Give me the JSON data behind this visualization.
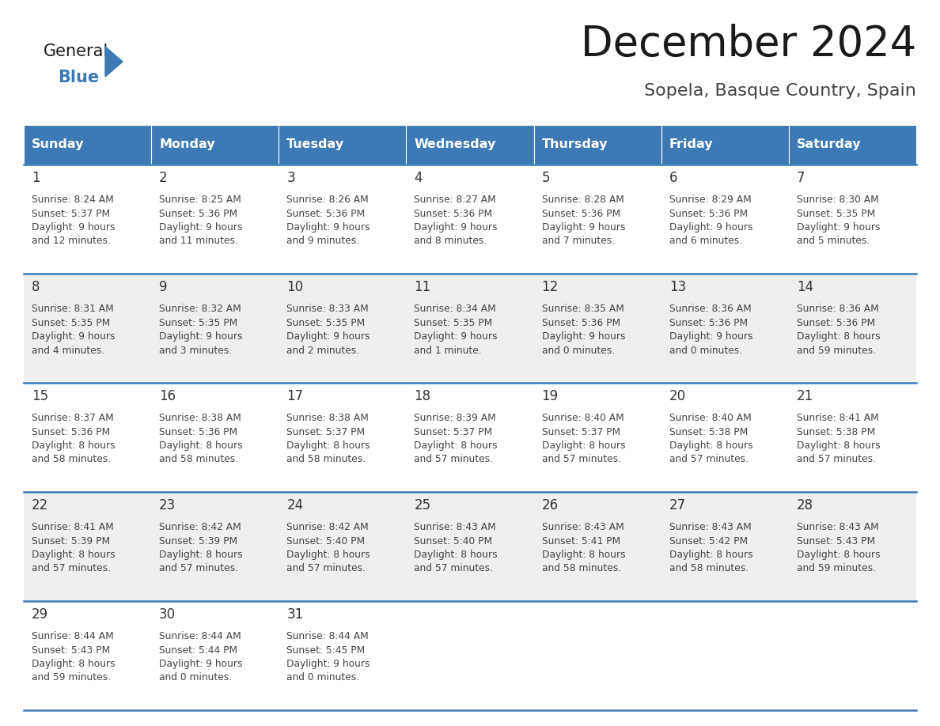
{
  "title": "December 2024",
  "subtitle": "Sopela, Basque Country, Spain",
  "header_color": "#3D7AB5",
  "header_text_color": "#FFFFFF",
  "cell_bg_white": "#FFFFFF",
  "cell_bg_gray": "#EFEFEF",
  "day_names": [
    "Sunday",
    "Monday",
    "Tuesday",
    "Wednesday",
    "Thursday",
    "Friday",
    "Saturday"
  ],
  "title_color": "#1a1a1a",
  "subtitle_color": "#444444",
  "date_color": "#333333",
  "info_color": "#444444",
  "divider_color": "#3D7AB5",
  "calendar_data": [
    {
      "day": 1,
      "col": 0,
      "row": 0,
      "sunrise": "8:24 AM",
      "sunset": "5:37 PM",
      "daylight_hours": 9,
      "daylight_minutes": 12
    },
    {
      "day": 2,
      "col": 1,
      "row": 0,
      "sunrise": "8:25 AM",
      "sunset": "5:36 PM",
      "daylight_hours": 9,
      "daylight_minutes": 11
    },
    {
      "day": 3,
      "col": 2,
      "row": 0,
      "sunrise": "8:26 AM",
      "sunset": "5:36 PM",
      "daylight_hours": 9,
      "daylight_minutes": 9
    },
    {
      "day": 4,
      "col": 3,
      "row": 0,
      "sunrise": "8:27 AM",
      "sunset": "5:36 PM",
      "daylight_hours": 9,
      "daylight_minutes": 8
    },
    {
      "day": 5,
      "col": 4,
      "row": 0,
      "sunrise": "8:28 AM",
      "sunset": "5:36 PM",
      "daylight_hours": 9,
      "daylight_minutes": 7
    },
    {
      "day": 6,
      "col": 5,
      "row": 0,
      "sunrise": "8:29 AM",
      "sunset": "5:36 PM",
      "daylight_hours": 9,
      "daylight_minutes": 6
    },
    {
      "day": 7,
      "col": 6,
      "row": 0,
      "sunrise": "8:30 AM",
      "sunset": "5:35 PM",
      "daylight_hours": 9,
      "daylight_minutes": 5
    },
    {
      "day": 8,
      "col": 0,
      "row": 1,
      "sunrise": "8:31 AM",
      "sunset": "5:35 PM",
      "daylight_hours": 9,
      "daylight_minutes": 4
    },
    {
      "day": 9,
      "col": 1,
      "row": 1,
      "sunrise": "8:32 AM",
      "sunset": "5:35 PM",
      "daylight_hours": 9,
      "daylight_minutes": 3
    },
    {
      "day": 10,
      "col": 2,
      "row": 1,
      "sunrise": "8:33 AM",
      "sunset": "5:35 PM",
      "daylight_hours": 9,
      "daylight_minutes": 2
    },
    {
      "day": 11,
      "col": 3,
      "row": 1,
      "sunrise": "8:34 AM",
      "sunset": "5:35 PM",
      "daylight_hours": 9,
      "daylight_minutes": 1
    },
    {
      "day": 12,
      "col": 4,
      "row": 1,
      "sunrise": "8:35 AM",
      "sunset": "5:36 PM",
      "daylight_hours": 9,
      "daylight_minutes": 0
    },
    {
      "day": 13,
      "col": 5,
      "row": 1,
      "sunrise": "8:36 AM",
      "sunset": "5:36 PM",
      "daylight_hours": 9,
      "daylight_minutes": 0
    },
    {
      "day": 14,
      "col": 6,
      "row": 1,
      "sunrise": "8:36 AM",
      "sunset": "5:36 PM",
      "daylight_hours": 8,
      "daylight_minutes": 59
    },
    {
      "day": 15,
      "col": 0,
      "row": 2,
      "sunrise": "8:37 AM",
      "sunset": "5:36 PM",
      "daylight_hours": 8,
      "daylight_minutes": 58
    },
    {
      "day": 16,
      "col": 1,
      "row": 2,
      "sunrise": "8:38 AM",
      "sunset": "5:36 PM",
      "daylight_hours": 8,
      "daylight_minutes": 58
    },
    {
      "day": 17,
      "col": 2,
      "row": 2,
      "sunrise": "8:38 AM",
      "sunset": "5:37 PM",
      "daylight_hours": 8,
      "daylight_minutes": 58
    },
    {
      "day": 18,
      "col": 3,
      "row": 2,
      "sunrise": "8:39 AM",
      "sunset": "5:37 PM",
      "daylight_hours": 8,
      "daylight_minutes": 57
    },
    {
      "day": 19,
      "col": 4,
      "row": 2,
      "sunrise": "8:40 AM",
      "sunset": "5:37 PM",
      "daylight_hours": 8,
      "daylight_minutes": 57
    },
    {
      "day": 20,
      "col": 5,
      "row": 2,
      "sunrise": "8:40 AM",
      "sunset": "5:38 PM",
      "daylight_hours": 8,
      "daylight_minutes": 57
    },
    {
      "day": 21,
      "col": 6,
      "row": 2,
      "sunrise": "8:41 AM",
      "sunset": "5:38 PM",
      "daylight_hours": 8,
      "daylight_minutes": 57
    },
    {
      "day": 22,
      "col": 0,
      "row": 3,
      "sunrise": "8:41 AM",
      "sunset": "5:39 PM",
      "daylight_hours": 8,
      "daylight_minutes": 57
    },
    {
      "day": 23,
      "col": 1,
      "row": 3,
      "sunrise": "8:42 AM",
      "sunset": "5:39 PM",
      "daylight_hours": 8,
      "daylight_minutes": 57
    },
    {
      "day": 24,
      "col": 2,
      "row": 3,
      "sunrise": "8:42 AM",
      "sunset": "5:40 PM",
      "daylight_hours": 8,
      "daylight_minutes": 57
    },
    {
      "day": 25,
      "col": 3,
      "row": 3,
      "sunrise": "8:43 AM",
      "sunset": "5:40 PM",
      "daylight_hours": 8,
      "daylight_minutes": 57
    },
    {
      "day": 26,
      "col": 4,
      "row": 3,
      "sunrise": "8:43 AM",
      "sunset": "5:41 PM",
      "daylight_hours": 8,
      "daylight_minutes": 58
    },
    {
      "day": 27,
      "col": 5,
      "row": 3,
      "sunrise": "8:43 AM",
      "sunset": "5:42 PM",
      "daylight_hours": 8,
      "daylight_minutes": 58
    },
    {
      "day": 28,
      "col": 6,
      "row": 3,
      "sunrise": "8:43 AM",
      "sunset": "5:43 PM",
      "daylight_hours": 8,
      "daylight_minutes": 59
    },
    {
      "day": 29,
      "col": 0,
      "row": 4,
      "sunrise": "8:44 AM",
      "sunset": "5:43 PM",
      "daylight_hours": 8,
      "daylight_minutes": 59
    },
    {
      "day": 30,
      "col": 1,
      "row": 4,
      "sunrise": "8:44 AM",
      "sunset": "5:44 PM",
      "daylight_hours": 9,
      "daylight_minutes": 0
    },
    {
      "day": 31,
      "col": 2,
      "row": 4,
      "sunrise": "8:44 AM",
      "sunset": "5:45 PM",
      "daylight_hours": 9,
      "daylight_minutes": 0
    }
  ],
  "logo_general_color": "#1a1a1a",
  "logo_blue_color": "#3D7AB5",
  "fig_width": 11.88,
  "fig_height": 9.18,
  "dpi": 100
}
